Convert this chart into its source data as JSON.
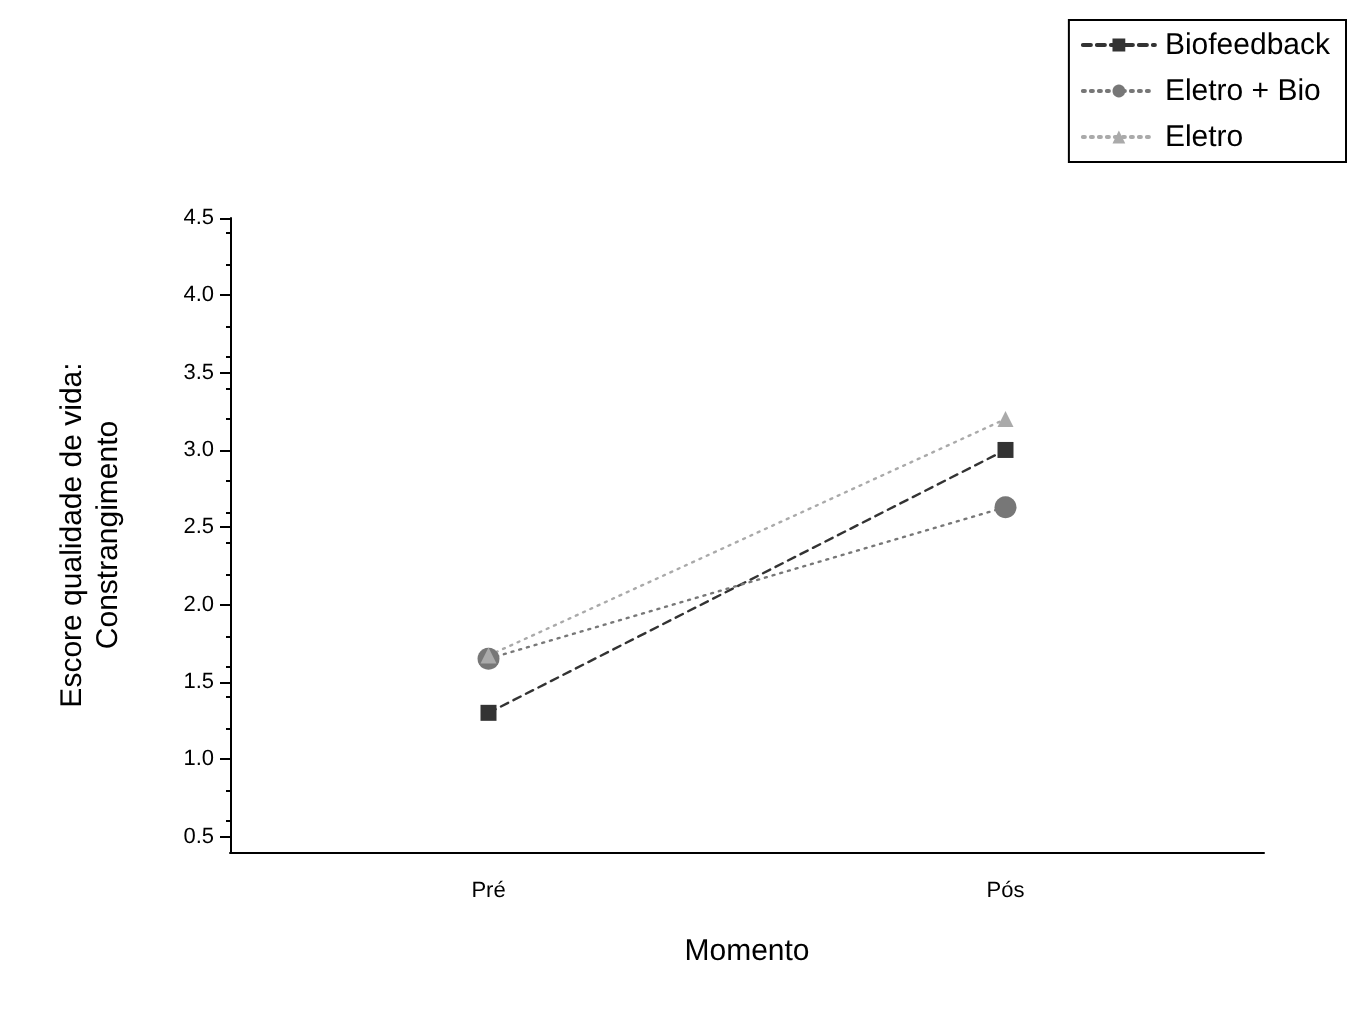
{
  "chart_data": {
    "type": "line",
    "xlabel": "Momento",
    "ylabel": "Escore qualidade de vida:\nConstrangimento",
    "categories": [
      "Pré",
      "Pós"
    ],
    "series": [
      {
        "name": "Biofeedback",
        "color": "#333333",
        "values": [
          1.3,
          3.0
        ],
        "marker": "square",
        "line_style": "dashed"
      },
      {
        "name": "Eletro + Bio",
        "color": "#777777",
        "values": [
          1.65,
          2.63
        ],
        "marker": "circle",
        "line_style": "dotted"
      },
      {
        "name": "Eletro",
        "color": "#aaaaaa",
        "values": [
          1.67,
          3.2
        ],
        "marker": "triangle",
        "line_style": "dotted"
      }
    ],
    "ylim": [
      0.4,
      4.5
    ],
    "yticks": [
      0.5,
      {
        "value": 1,
        "label": "1.0"
      },
      1.5,
      {
        "value": 2,
        "label": "2.0"
      },
      2.5,
      {
        "value": 3,
        "label": "3.0"
      },
      3.5,
      {
        "value": 4,
        "label": "4.0"
      },
      4.5
    ],
    "grid": false,
    "legend": "top right"
  }
}
